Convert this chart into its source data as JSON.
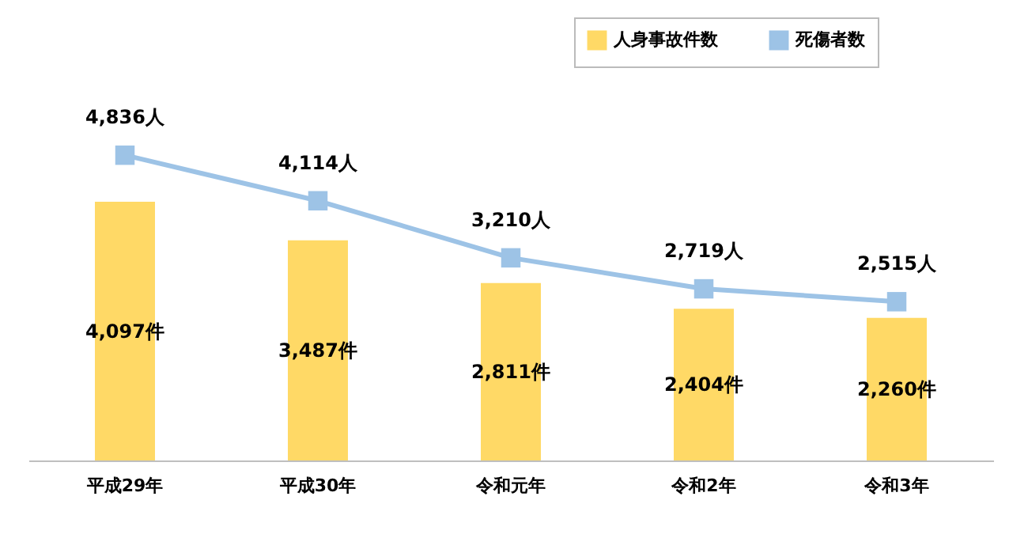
{
  "chart_data": {
    "type": "bar",
    "categories": [
      "平成29年",
      "平成30年",
      "令和元年",
      "令和2年",
      "令和3年"
    ],
    "series": [
      {
        "name": "人身事故件数",
        "color": "#ffd966",
        "values": [
          4097,
          3487,
          2811,
          2404,
          2260
        ],
        "value_labels": [
          "4,097件",
          "3,487件",
          "2,811件",
          "2,404件",
          "2,260件"
        ]
      },
      {
        "name": "死傷者数",
        "type": "line",
        "color": "#9dc3e6",
        "values": [
          4836,
          4114,
          3210,
          2719,
          2515
        ],
        "value_labels": [
          "4,836人",
          "4,114人",
          "3,210人",
          "2,719人",
          "2,515人"
        ]
      }
    ],
    "legend": "top right",
    "marker": "square",
    "line_style": "solid",
    "tick_labels": "x"
  }
}
